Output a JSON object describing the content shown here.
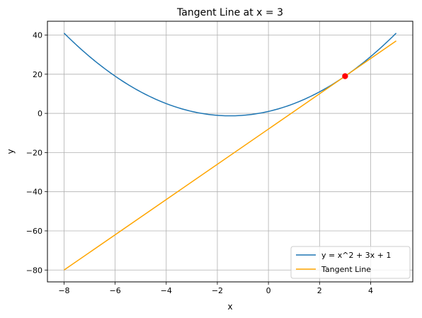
{
  "chart_data": {
    "type": "line",
    "title": "Tangent Line at x = 3",
    "xlabel": "x",
    "ylabel": "y",
    "xlim": [
      -8.65,
      5.65
    ],
    "ylim": [
      -86.05,
      47.05
    ],
    "xticks": [
      -8,
      -6,
      -4,
      -2,
      0,
      2,
      4
    ],
    "xtick_labels": [
      "−8",
      "−6",
      "−4",
      "−2",
      "0",
      "2",
      "4"
    ],
    "yticks": [
      -80,
      -60,
      -40,
      -20,
      0,
      20,
      40
    ],
    "ytick_labels": [
      "−80",
      "−60",
      "−40",
      "−20",
      "0",
      "20",
      "40"
    ],
    "grid": true,
    "legend_position": "bottom-right",
    "series": [
      {
        "name": "y = x^2 + 3x + 1",
        "color": "#1f77b4",
        "kind": "curve",
        "x": [
          -8,
          -7,
          -6,
          -5,
          -4,
          -3,
          -2,
          -1.5,
          -1,
          0,
          1,
          2,
          3,
          4,
          5
        ],
        "y": [
          41,
          29,
          19,
          11,
          5,
          1,
          -1,
          -1.25,
          -1,
          1,
          5,
          11,
          19,
          29,
          41
        ]
      },
      {
        "name": "Tangent Line",
        "color": "#ffa500",
        "kind": "line",
        "x": [
          -8,
          5
        ],
        "y": [
          -80,
          37
        ]
      }
    ],
    "point": {
      "x": 3,
      "y": 19,
      "color": "#ff0000"
    }
  }
}
